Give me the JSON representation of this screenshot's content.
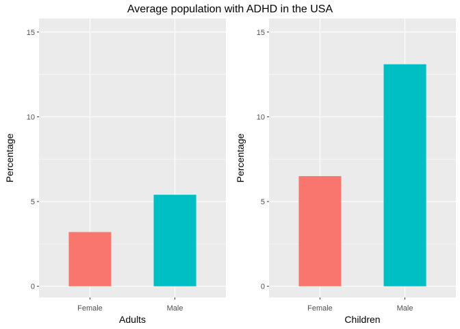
{
  "chart_data": {
    "title": "Average population with ADHD in the USA",
    "colors": {
      "panel_bg": "#EBEBEB",
      "grid": "#FFFFFF",
      "tick": "#333333",
      "Female": "#F8766D",
      "Male": "#00BFC4"
    },
    "panels": [
      {
        "type": "bar",
        "categories": [
          "Female",
          "Male"
        ],
        "values": [
          3.2,
          5.4
        ],
        "xlabel": "Adults",
        "ylabel": "Percentage",
        "ylim": [
          -0.66,
          15.8
        ],
        "yticks": [
          0,
          5,
          10,
          15
        ],
        "grid": true
      },
      {
        "type": "bar",
        "categories": [
          "Female",
          "Male"
        ],
        "values": [
          6.5,
          13.1
        ],
        "xlabel": "Children",
        "ylabel": "Percentage",
        "ylim": [
          -0.66,
          15.8
        ],
        "yticks": [
          0,
          5,
          10,
          15
        ],
        "grid": true
      }
    ]
  }
}
